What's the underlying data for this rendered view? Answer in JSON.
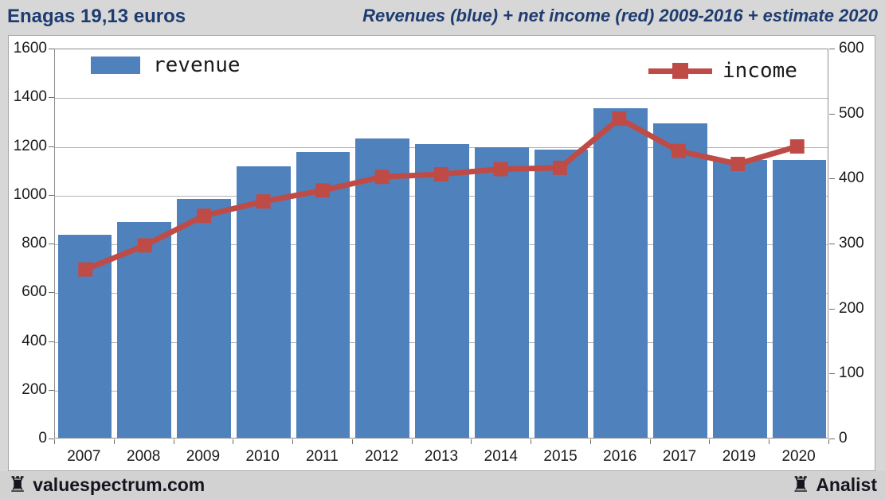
{
  "header": {
    "title": "Enagas 19,13 euros",
    "subtitle": "Revenues (blue) + net income (red) 2009-2016 + estimate 2020"
  },
  "chart_data": {
    "type": "bar",
    "title": "Revenues (blue) + net income (red) 2009-2016 + estimate 2020",
    "stock_label": "Enagas 19,13 euros",
    "categories": [
      "2007",
      "2008",
      "2009",
      "2010",
      "2011",
      "2012",
      "2013",
      "2014",
      "2015",
      "2016",
      "2017",
      "2019",
      "2020"
    ],
    "series": [
      {
        "name": "revenue",
        "kind": "bar",
        "axis": "left",
        "color": "#4f81bd",
        "values": [
          840,
          890,
          985,
          1120,
          1180,
          1235,
          1210,
          1200,
          1190,
          1360,
          1295,
          1145,
          1145
        ]
      },
      {
        "name": "income",
        "kind": "line",
        "axis": "right",
        "color": "#bf4b47",
        "values": [
          260,
          297,
          343,
          365,
          382,
          403,
          407,
          415,
          417,
          493,
          443,
          423,
          450
        ]
      }
    ],
    "left_axis": {
      "min": 0,
      "max": 1600,
      "ticks": [
        0,
        200,
        400,
        600,
        800,
        1000,
        1200,
        1400,
        1600
      ]
    },
    "right_axis": {
      "min": 0,
      "max": 600,
      "ticks": [
        0,
        100,
        200,
        300,
        400,
        500,
        600
      ]
    },
    "legend": {
      "revenue_label": "revenue",
      "income_label": "income",
      "position": "top-inside"
    },
    "grid": true,
    "xlabel": "",
    "ylabel": ""
  },
  "footer": {
    "left_brand": "valuespectrum.com",
    "right_brand": "Analist",
    "rook_icon": "♜"
  },
  "colors": {
    "bar_blue": "#4f81bd",
    "line_red": "#bf4b47",
    "header_text": "#1f3c70",
    "background": "#d7d7d7",
    "plot_background": "#ffffff",
    "gridline": "#b2b2b2",
    "axis_text": "#1a1a1a"
  }
}
